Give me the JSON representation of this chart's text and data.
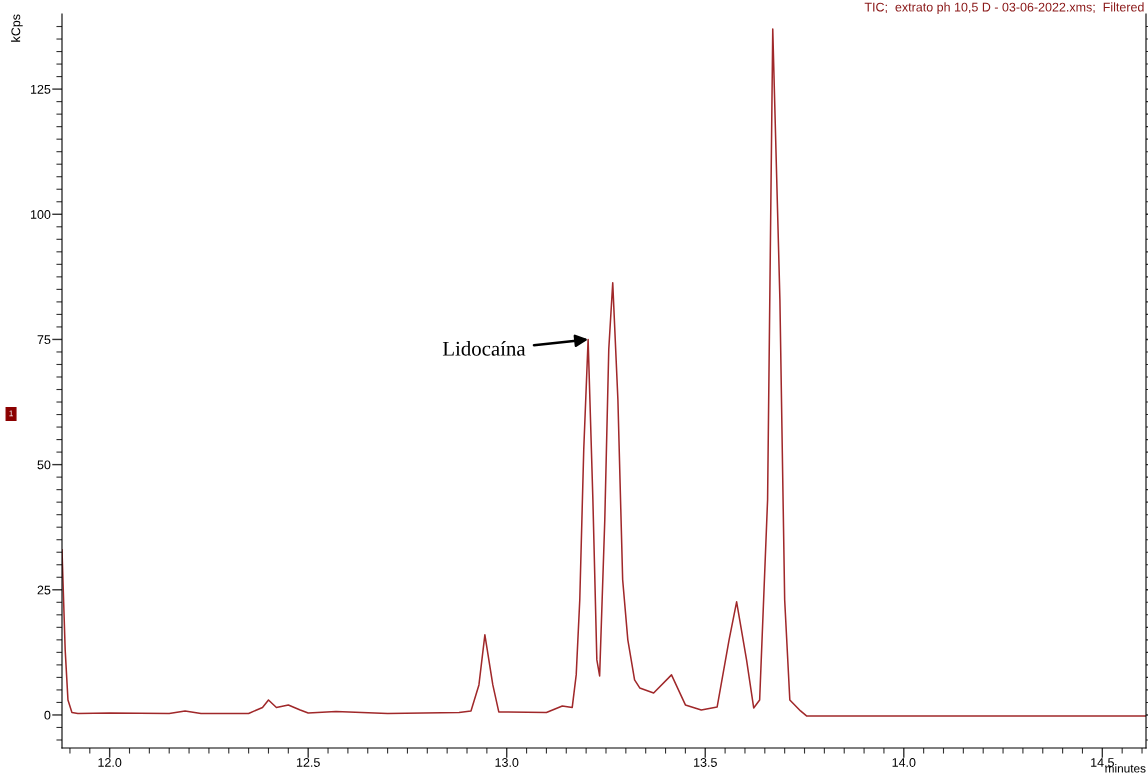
{
  "chart_data": {
    "type": "line",
    "title": "TIC;  extrato ph 10,5 D - 03-06-2022.xms;  Filtered",
    "xlabel": "minutes",
    "ylabel": "kCps",
    "x": [
      11.88,
      11.888,
      11.895,
      11.905,
      11.92,
      12.0,
      12.15,
      12.19,
      12.23,
      12.35,
      12.385,
      12.4,
      12.42,
      12.45,
      12.48,
      12.5,
      12.57,
      12.7,
      12.88,
      12.91,
      12.93,
      12.945,
      12.965,
      12.98,
      13.1,
      13.14,
      13.165,
      13.175,
      13.184,
      13.194,
      13.205,
      13.217,
      13.227,
      13.234,
      13.247,
      13.257,
      13.267,
      13.28,
      13.292,
      13.305,
      13.322,
      13.335,
      13.37,
      13.415,
      13.45,
      13.49,
      13.53,
      13.56,
      13.579,
      13.604,
      13.622,
      13.637,
      13.657,
      13.67,
      13.688,
      13.7,
      13.713,
      13.74,
      13.755,
      14.0,
      14.3,
      14.61
    ],
    "series": [
      {
        "color": "#a0282a",
        "values": [
          33,
          13,
          3,
          0.5,
          0.3,
          0.4,
          0.3,
          0.8,
          0.3,
          0.3,
          1.5,
          3,
          1.5,
          2,
          1,
          0.4,
          0.7,
          0.3,
          0.5,
          0.8,
          6,
          16,
          6,
          0.6,
          0.5,
          1.8,
          1.5,
          8,
          23,
          53,
          75,
          43,
          11,
          7.8,
          39,
          73,
          86.3,
          63,
          27,
          15,
          7,
          5.4,
          4.4,
          8,
          2,
          1,
          1.6,
          15,
          22.6,
          11,
          1.4,
          3,
          43,
          137,
          83,
          23,
          3,
          0.8,
          -0.2,
          -0.2,
          -0.2,
          -0.2
        ]
      }
    ],
    "xlim": [
      11.88,
      14.61
    ],
    "xticks": [
      {
        "value": 11.9,
        "label": null
      },
      {
        "value": 11.95,
        "label": null
      },
      {
        "value": 12,
        "label": "12.0"
      },
      {
        "value": 12.05,
        "label": null
      },
      {
        "value": 12.1,
        "label": null
      },
      {
        "value": 12.15,
        "label": null
      },
      {
        "value": 12.2,
        "label": null
      },
      {
        "value": 12.25,
        "label": null
      },
      {
        "value": 12.3,
        "label": null
      },
      {
        "value": 12.35,
        "label": null
      },
      {
        "value": 12.4,
        "label": null
      },
      {
        "value": 12.45,
        "label": null
      },
      {
        "value": 12.5,
        "label": "12.5"
      },
      {
        "value": 12.55,
        "label": null
      },
      {
        "value": 12.6,
        "label": null
      },
      {
        "value": 12.65,
        "label": null
      },
      {
        "value": 12.7,
        "label": null
      },
      {
        "value": 12.75,
        "label": null
      },
      {
        "value": 12.8,
        "label": null
      },
      {
        "value": 12.85,
        "label": null
      },
      {
        "value": 12.9,
        "label": null
      },
      {
        "value": 12.95,
        "label": null
      },
      {
        "value": 13,
        "label": "13.0"
      },
      {
        "value": 13.05,
        "label": null
      },
      {
        "value": 13.1,
        "label": null
      },
      {
        "value": 13.15,
        "label": null
      },
      {
        "value": 13.2,
        "label": null
      },
      {
        "value": 13.25,
        "label": null
      },
      {
        "value": 13.3,
        "label": null
      },
      {
        "value": 13.35,
        "label": null
      },
      {
        "value": 13.4,
        "label": null
      },
      {
        "value": 13.45,
        "label": null
      },
      {
        "value": 13.5,
        "label": "13.5"
      },
      {
        "value": 13.55,
        "label": null
      },
      {
        "value": 13.6,
        "label": null
      },
      {
        "value": 13.65,
        "label": null
      },
      {
        "value": 13.7,
        "label": null
      },
      {
        "value": 13.75,
        "label": null
      },
      {
        "value": 13.8,
        "label": null
      },
      {
        "value": 13.85,
        "label": null
      },
      {
        "value": 13.9,
        "label": null
      },
      {
        "value": 13.95,
        "label": null
      },
      {
        "value": 14,
        "label": "14.0"
      },
      {
        "value": 14.05,
        "label": null
      },
      {
        "value": 14.1,
        "label": null
      },
      {
        "value": 14.15,
        "label": null
      },
      {
        "value": 14.2,
        "label": null
      },
      {
        "value": 14.25,
        "label": null
      },
      {
        "value": 14.3,
        "label": null
      },
      {
        "value": 14.35,
        "label": null
      },
      {
        "value": 14.4,
        "label": null
      },
      {
        "value": 14.45,
        "label": null
      },
      {
        "value": 14.5,
        "label": "14.5"
      },
      {
        "value": 14.55,
        "label": null
      },
      {
        "value": 14.6,
        "label": null
      }
    ],
    "ylim": [
      -6.6,
      140
    ],
    "yticks": [
      {
        "value": -5,
        "label": null
      },
      {
        "value": -2.5,
        "label": null
      },
      0,
      {
        "value": 2.5,
        "label": null
      },
      {
        "value": 5,
        "label": null
      },
      {
        "value": 7.5,
        "label": null
      },
      {
        "value": 10,
        "label": null
      },
      {
        "value": 12.5,
        "label": null
      },
      {
        "value": 15,
        "label": null
      },
      {
        "value": 17.5,
        "label": null
      },
      {
        "value": 20,
        "label": null
      },
      {
        "value": 22.5,
        "label": null
      },
      25,
      {
        "value": 27.5,
        "label": null
      },
      {
        "value": 30,
        "label": null
      },
      {
        "value": 32.5,
        "label": null
      },
      {
        "value": 35,
        "label": null
      },
      {
        "value": 37.5,
        "label": null
      },
      {
        "value": 40,
        "label": null
      },
      {
        "value": 42.5,
        "label": null
      },
      {
        "value": 45,
        "label": null
      },
      {
        "value": 47.5,
        "label": null
      },
      50,
      {
        "value": 52.5,
        "label": null
      },
      {
        "value": 55,
        "label": null
      },
      {
        "value": 57.5,
        "label": null
      },
      {
        "value": 60,
        "label": null
      },
      {
        "value": 62.5,
        "label": null
      },
      {
        "value": 65,
        "label": null
      },
      {
        "value": 67.5,
        "label": null
      },
      {
        "value": 70,
        "label": null
      },
      {
        "value": 72.5,
        "label": null
      },
      75,
      {
        "value": 77.5,
        "label": null
      },
      {
        "value": 80,
        "label": null
      },
      {
        "value": 82.5,
        "label": null
      },
      {
        "value": 85,
        "label": null
      },
      {
        "value": 87.5,
        "label": null
      },
      {
        "value": 90,
        "label": null
      },
      {
        "value": 92.5,
        "label": null
      },
      {
        "value": 95,
        "label": null
      },
      {
        "value": 97.5,
        "label": null
      },
      100,
      {
        "value": 102.5,
        "label": null
      },
      {
        "value": 105,
        "label": null
      },
      {
        "value": 107.5,
        "label": null
      },
      {
        "value": 110,
        "label": null
      },
      {
        "value": 112.5,
        "label": null
      },
      {
        "value": 115,
        "label": null
      },
      {
        "value": 117.5,
        "label": null
      },
      {
        "value": 120,
        "label": null
      },
      {
        "value": 122.5,
        "label": null
      },
      125,
      {
        "value": 127.5,
        "label": null
      },
      {
        "value": 130,
        "label": null
      },
      {
        "value": 132.5,
        "label": null
      },
      {
        "value": 135,
        "label": null
      },
      {
        "value": 137.5,
        "label": null
      }
    ],
    "grid": false,
    "marker": "none",
    "line_style": "solid",
    "annotations": [
      {
        "text": "Lidocaína",
        "x": 13.205,
        "y": 75
      },
      "1"
    ]
  }
}
